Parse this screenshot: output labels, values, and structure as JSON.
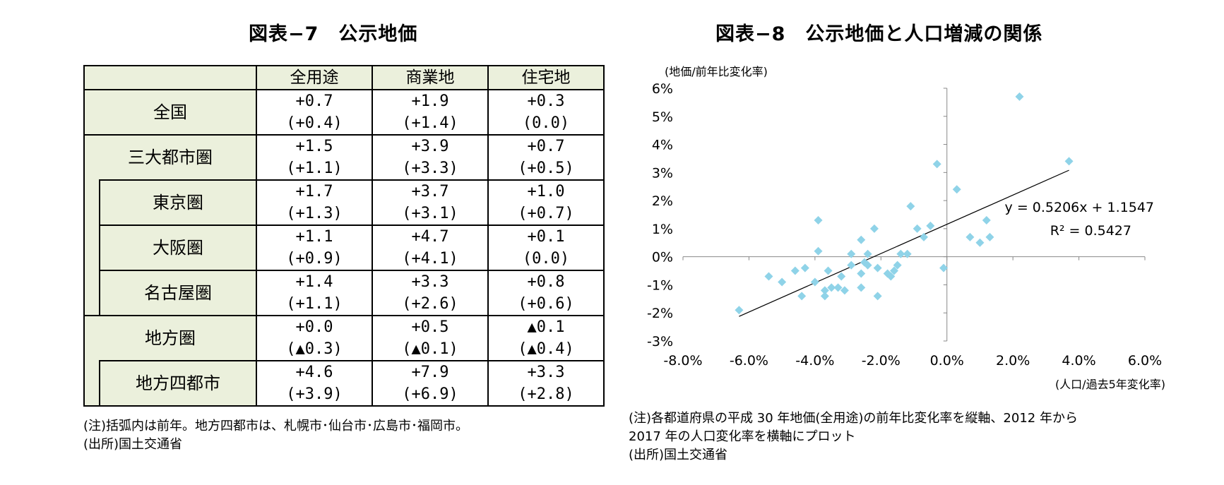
{
  "left_title": "図表−7　公示地価",
  "right_title": "図表−8　公示地価と人口増減の関係",
  "table": {
    "headers": [
      "全用途",
      "商業地",
      "住宅地"
    ],
    "rows": [
      {
        "label": "全国",
        "cells": [
          [
            "+0.7",
            "(+0.4)"
          ],
          [
            "+1.9",
            "(+1.4)"
          ],
          [
            "+0.3",
            "(0.0)"
          ]
        ]
      },
      {
        "label": "三大都市圏",
        "cells": [
          [
            "+1.5",
            "(+1.1)"
          ],
          [
            "+3.9",
            "(+3.3)"
          ],
          [
            "+0.7",
            "(+0.5)"
          ]
        ]
      },
      {
        "label": "東京圏",
        "cells": [
          [
            "+1.7",
            "(+1.3)"
          ],
          [
            "+3.7",
            "(+3.1)"
          ],
          [
            "+1.0",
            "(+0.7)"
          ]
        ]
      },
      {
        "label": "大阪圏",
        "cells": [
          [
            "+1.1",
            "(+0.9)"
          ],
          [
            "+4.7",
            "(+4.1)"
          ],
          [
            "+0.1",
            "(0.0)"
          ]
        ]
      },
      {
        "label": "名古屋圏",
        "cells": [
          [
            "+1.4",
            "(+1.1)"
          ],
          [
            "+3.3",
            "(+2.6)"
          ],
          [
            "+0.8",
            "(+0.6)"
          ]
        ]
      },
      {
        "label": "地方圏",
        "cells": [
          [
            "+0.0",
            "(▲0.3)"
          ],
          [
            "+0.5",
            "(▲0.1)"
          ],
          [
            "▲0.1",
            "(▲0.4)"
          ]
        ]
      },
      {
        "label": "地方四都市",
        "cells": [
          [
            "+4.6",
            "(+3.9)"
          ],
          [
            "+7.9",
            "(+6.9)"
          ],
          [
            "+3.3",
            "(+2.8)"
          ]
        ]
      }
    ]
  },
  "left_note_1": "(注)括弧内は前年。地方四都市は、札幌市･仙台市･広島市･福岡市。",
  "left_note_2": "(出所)国土交通省",
  "right_note_1": "(注)各都道府県の平成 30 年地価(全用途)の前年比変化率を縦軸、2012 年から",
  "right_note_2": "2017 年の人口変化率を横軸にプロット",
  "right_note_3": "(出所)国土交通省",
  "chart_data": {
    "type": "scatter",
    "ylabel": "(地価/前年比変化率)",
    "xlabel": "(人口/過去5年変化率)",
    "xlim": [
      -8.0,
      6.0
    ],
    "ylim": [
      -3,
      6
    ],
    "xticks": [
      "-8.0%",
      "-6.0%",
      "-4.0%",
      "-2.0%",
      "0.0%",
      "2.0%",
      "4.0%",
      "6.0%"
    ],
    "yticks": [
      "6%",
      "5%",
      "4%",
      "3%",
      "2%",
      "1%",
      "0%",
      "-1%",
      "-2%",
      "-3%"
    ],
    "marker_color": "#8fd3e8",
    "trendline": {
      "slope": 0.5206,
      "intercept": 1.1547,
      "x_range": [
        -6.3,
        3.7
      ],
      "equation": "y = 0.5206x + 1.1547",
      "r2": "R² = 0.5427"
    },
    "points": [
      [
        -6.3,
        -1.9
      ],
      [
        -5.4,
        -0.7
      ],
      [
        -5.0,
        -0.9
      ],
      [
        -4.6,
        -0.5
      ],
      [
        -4.4,
        -1.4
      ],
      [
        -4.3,
        -0.4
      ],
      [
        -4.0,
        -0.9
      ],
      [
        -3.9,
        1.3
      ],
      [
        -3.9,
        0.2
      ],
      [
        -3.7,
        -1.2
      ],
      [
        -3.7,
        -1.4
      ],
      [
        -3.6,
        -0.5
      ],
      [
        -3.5,
        -1.1
      ],
      [
        -3.3,
        -1.1
      ],
      [
        -3.2,
        -0.7
      ],
      [
        -3.1,
        -1.2
      ],
      [
        -2.9,
        -0.3
      ],
      [
        -2.9,
        0.1
      ],
      [
        -2.6,
        0.6
      ],
      [
        -2.6,
        -0.6
      ],
      [
        -2.6,
        -1.1
      ],
      [
        -2.5,
        -0.2
      ],
      [
        -2.4,
        0.1
      ],
      [
        -2.4,
        -0.3
      ],
      [
        -2.2,
        1.0
      ],
      [
        -2.1,
        -1.4
      ],
      [
        -2.1,
        -0.4
      ],
      [
        -1.8,
        -0.6
      ],
      [
        -1.7,
        -0.7
      ],
      [
        -1.6,
        -0.5
      ],
      [
        -1.5,
        -0.3
      ],
      [
        -1.4,
        0.1
      ],
      [
        -1.2,
        0.1
      ],
      [
        -1.1,
        1.8
      ],
      [
        -0.9,
        1.0
      ],
      [
        -0.7,
        0.7
      ],
      [
        -0.5,
        1.1
      ],
      [
        -0.3,
        3.3
      ],
      [
        -0.1,
        -0.4
      ],
      [
        0.3,
        2.4
      ],
      [
        0.7,
        0.7
      ],
      [
        1.0,
        0.5
      ],
      [
        1.2,
        1.3
      ],
      [
        1.3,
        0.7
      ],
      [
        2.2,
        5.7
      ],
      [
        3.7,
        3.4
      ]
    ]
  }
}
